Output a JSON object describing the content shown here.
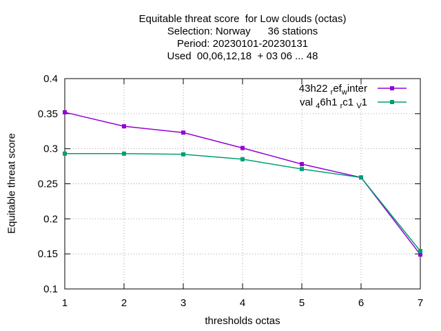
{
  "chart_data": {
    "type": "line",
    "title_lines": [
      "Equitable threat score  for Low clouds (octas)",
      "Selection: Norway      36 stations",
      "Period: 20230101-20230131",
      "Used  00,06,12,18  + 03 06 ... 48"
    ],
    "xlabel": "thresholds octas",
    "ylabel": "Equitable threat score",
    "x": [
      1,
      2,
      3,
      4,
      5,
      6,
      7
    ],
    "xlim": [
      1,
      7
    ],
    "ylim": [
      0.1,
      0.4
    ],
    "yticks": [
      "0.1",
      "0.15",
      "0.2",
      "0.25",
      "0.3",
      "0.35",
      "0.4"
    ],
    "grid": true,
    "legend_position": "top-right",
    "series": [
      {
        "name": "43h22",
        "name_parts": [
          [
            "43h22 ",
            "n"
          ],
          [
            "r",
            "sub"
          ],
          [
            "ef",
            "n"
          ],
          [
            "w",
            "sub"
          ],
          [
            "inter",
            "n"
          ]
        ],
        "color": "#9400d3",
        "values": [
          0.352,
          0.332,
          0.323,
          0.301,
          0.278,
          0.259,
          0.149
        ]
      },
      {
        "name": "val46h1",
        "name_parts": [
          [
            "val ",
            "n"
          ],
          [
            "4",
            "sub"
          ],
          [
            "6h1 ",
            "n"
          ],
          [
            "r",
            "sub"
          ],
          [
            "c1 ",
            "n"
          ],
          [
            "V",
            "sub"
          ],
          [
            "1",
            "n"
          ]
        ],
        "color": "#009e73",
        "values": [
          0.293,
          0.293,
          0.292,
          0.285,
          0.271,
          0.259,
          0.154
        ]
      }
    ]
  }
}
